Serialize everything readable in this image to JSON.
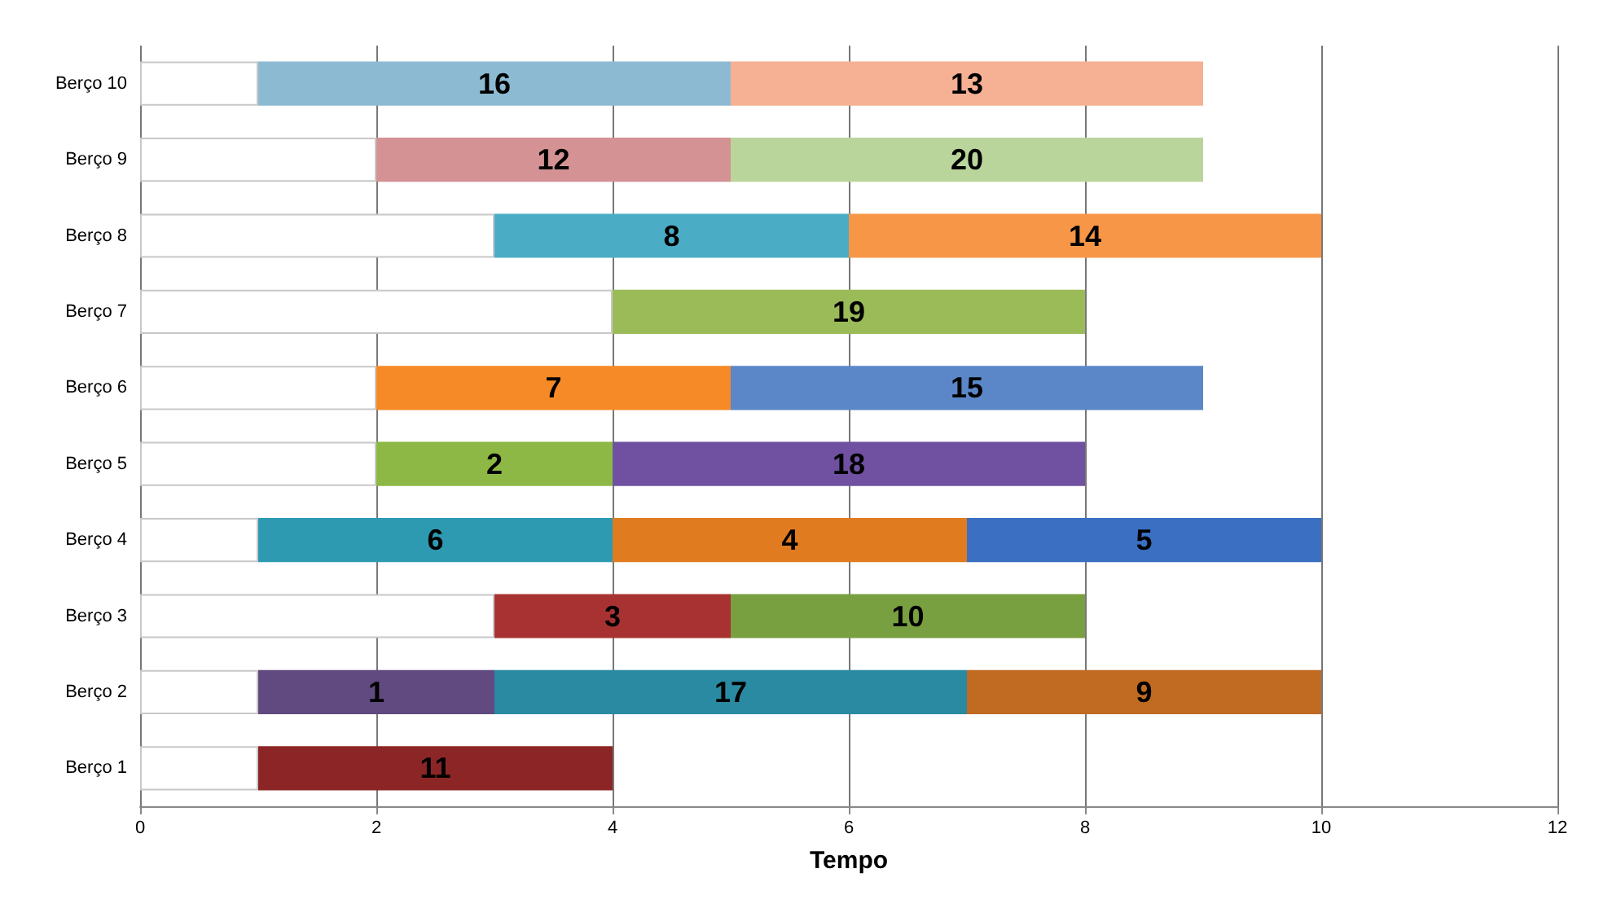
{
  "chart_data": {
    "type": "bar",
    "orientation": "horizontal",
    "stacked": true,
    "xlabel": "Tempo",
    "categories": [
      "Berço 10",
      "Berço 9",
      "Berço 8",
      "Berço 7",
      "Berço 6",
      "Berço 5",
      "Berço 4",
      "Berço 3",
      "Berço 2",
      "Berço 1"
    ],
    "series": [
      {
        "color": "#ffffff",
        "values": [
          1,
          2,
          3,
          4,
          2,
          2,
          1,
          3,
          1,
          1
        ]
      },
      {
        "colors": [
          "#8cbad2",
          "#d49294",
          "#4bacc6",
          "#9bbb59",
          "#f68a26",
          "#8db845",
          "#2e9ab2",
          "#a83232",
          "#604a7f",
          "#8c2626"
        ],
        "values": [
          4,
          3,
          3,
          4,
          3,
          2,
          3,
          2,
          2,
          3
        ]
      },
      {
        "colors": [
          "#f6b093",
          "#b9d59b",
          "#f79646",
          null,
          "#5b87c8",
          "#7050a0",
          "#e07b20",
          "#78a040",
          "#2a8aa2",
          null
        ],
        "values": [
          4,
          4,
          4,
          null,
          4,
          4,
          3,
          3,
          4,
          null
        ]
      },
      {
        "colors": [
          null,
          null,
          null,
          null,
          null,
          null,
          "#3a6fc2",
          null,
          "#c06a22",
          null
        ],
        "values": [
          null,
          null,
          null,
          null,
          null,
          null,
          3,
          null,
          3,
          null
        ]
      }
    ],
    "annotations": [
      "16",
      "13",
      "12",
      "20",
      "8",
      "14",
      "19",
      "7",
      "15",
      "2",
      "18",
      "6",
      "4",
      "5",
      "3",
      "10",
      "1",
      "17",
      "9",
      "11"
    ],
    "xlim": [
      0,
      12
    ],
    "xticks": [
      0,
      2,
      4,
      6,
      8,
      10,
      12
    ],
    "grid": "x"
  }
}
